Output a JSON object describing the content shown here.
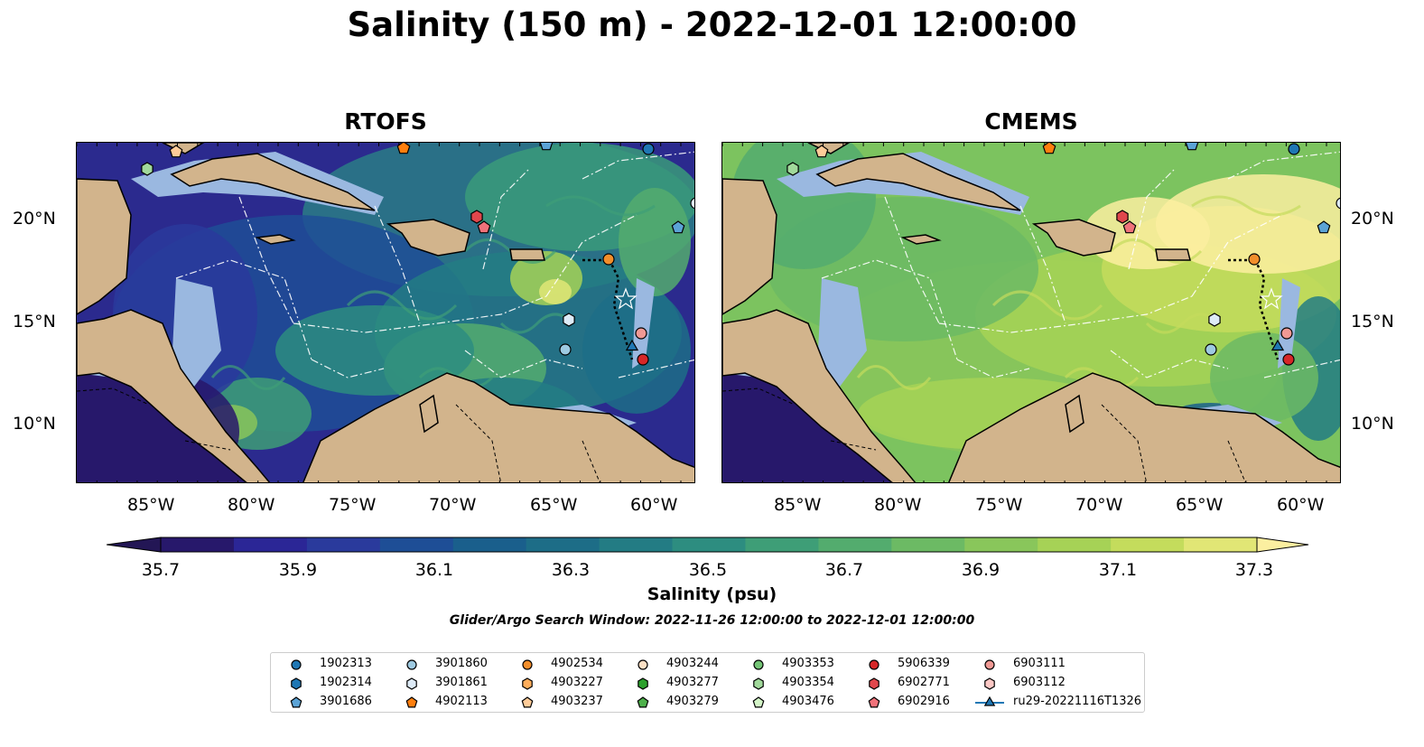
{
  "title": "Salinity (150 m) - 2022-12-01 12:00:00",
  "panels": [
    {
      "title": "RTOFS",
      "model": "rtofs"
    },
    {
      "title": "CMEMS",
      "model": "cmems"
    }
  ],
  "lon_ticks": [
    "85°W",
    "80°W",
    "75°W",
    "70°W",
    "65°W",
    "60°W"
  ],
  "lat_ticks": [
    "20°N",
    "15°N",
    "10°N"
  ],
  "colorbar": {
    "label": "Salinity (psu)",
    "ticks": [
      "35.7",
      "35.9",
      "36.1",
      "36.3",
      "36.5",
      "36.7",
      "36.9",
      "37.1",
      "37.3"
    ],
    "colors": [
      "#27186b",
      "#2b2696",
      "#2a3a9c",
      "#1e4e96",
      "#1a5f8c",
      "#1d6d87",
      "#237c84",
      "#2d8d80",
      "#3e9e77",
      "#53ac6e",
      "#6cba64",
      "#89c65b",
      "#a6d256",
      "#c4dc5c",
      "#e1e675"
    ],
    "under_color": "#231655",
    "over_color": "#fbefa0"
  },
  "search_window": "Glider/Argo Search Window: 2022-11-26 12:00:00 to 2022-12-01 12:00:00",
  "legend": [
    {
      "label": "1902313",
      "marker": "circle",
      "color": "#1f77b4"
    },
    {
      "label": "1902314",
      "marker": "hexagon",
      "color": "#1f77b4"
    },
    {
      "label": "3901686",
      "marker": "pentagon",
      "color": "#5ba3d6"
    },
    {
      "label": "3901860",
      "marker": "circle",
      "color": "#9ecae1"
    },
    {
      "label": "3901861",
      "marker": "hexagon",
      "color": "#deebf7"
    },
    {
      "label": "4902113",
      "marker": "pentagon",
      "color": "#ff7f0e"
    },
    {
      "label": "4902534",
      "marker": "circle",
      "color": "#f28e2b"
    },
    {
      "label": "4903227",
      "marker": "hexagon",
      "color": "#ffae5c"
    },
    {
      "label": "4903237",
      "marker": "pentagon",
      "color": "#ffcc99"
    },
    {
      "label": "4903244",
      "marker": "circle",
      "color": "#fde0c5"
    },
    {
      "label": "4903277",
      "marker": "hexagon",
      "color": "#2ca02c"
    },
    {
      "label": "4903279",
      "marker": "pentagon",
      "color": "#4db04a"
    },
    {
      "label": "4903353",
      "marker": "circle",
      "color": "#74c476"
    },
    {
      "label": "4903354",
      "marker": "hexagon",
      "color": "#a1d99b"
    },
    {
      "label": "4903476",
      "marker": "pentagon",
      "color": "#d4f5c8"
    },
    {
      "label": "5906339",
      "marker": "circle",
      "color": "#d62728"
    },
    {
      "label": "6902771",
      "marker": "hexagon",
      "color": "#e0474c"
    },
    {
      "label": "6902916",
      "marker": "pentagon",
      "color": "#f0727a"
    },
    {
      "label": "6903111",
      "marker": "circle",
      "color": "#f09994"
    },
    {
      "label": "6903112",
      "marker": "hexagon",
      "color": "#fcc8c5"
    },
    {
      "label": "ru29-20221116T1326",
      "marker": "triangle-line",
      "color": "#1f77b4"
    }
  ],
  "land_color": "#d2b48c",
  "shelf_color": "#9ab8e0"
}
